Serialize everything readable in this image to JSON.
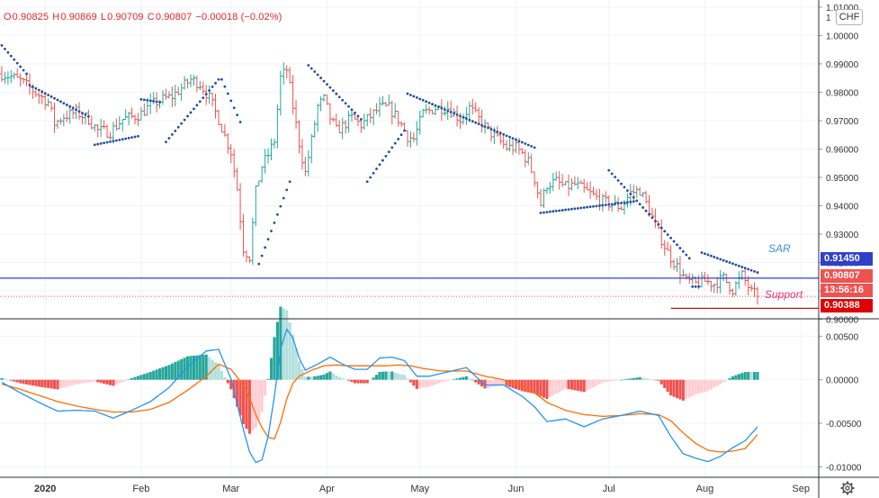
{
  "header": {
    "open_label": "O",
    "open": "0.90825",
    "high_label": "H",
    "high": "0.90869",
    "low_label": "L",
    "low": "0.90709",
    "close_label": "C",
    "close": "0.90807",
    "change": "−0.00018 (−0.02%)",
    "currency_button": "CHF"
  },
  "price_tags": {
    "sar": "0.91450",
    "last": "0.90807",
    "countdown": "13:56:16",
    "support": "0.90388"
  },
  "annotations": {
    "sar_label": "SAR",
    "support_label": "Support"
  },
  "colors": {
    "up": "#26a69a",
    "down": "#ef5350",
    "sar_dots": "#1f4e9c",
    "sar_line": "#3140c8",
    "support_line": "#b71c1c",
    "macd_line": "#2196f3",
    "signal_line": "#ff6d00",
    "hist_up_strong": "#26a69a",
    "hist_up_weak": "#b2dfdb",
    "hist_down_strong": "#ef5350",
    "hist_down_weak": "#ffcdd2"
  },
  "icons": {
    "settings": "gear-icon"
  },
  "chart_data": [
    {
      "type": "ohlc",
      "panel": "price",
      "y_range": [
        0.9005,
        1.0125
      ],
      "y_ticks": [
        "0.90000",
        "0.91000",
        "0.92000",
        "0.93000",
        "0.94000",
        "0.95000",
        "0.96000",
        "0.97000",
        "0.98000",
        "0.99000",
        "1.00000",
        "1.01000"
      ],
      "x_range_days": [
        0,
        244
      ],
      "x_ticks": [
        {
          "label": "2020",
          "day": 14
        },
        {
          "label": "Feb",
          "day": 45
        },
        {
          "label": "Mar",
          "day": 74
        },
        {
          "label": "Apr",
          "day": 105
        },
        {
          "label": "May",
          "day": 135
        },
        {
          "label": "Jun",
          "day": 166
        },
        {
          "label": "Jul",
          "day": 196
        },
        {
          "label": "Aug",
          "day": 227
        },
        {
          "label": "Sep",
          "day": 258
        }
      ],
      "close_anchors": [
        [
          0,
          0.9865
        ],
        [
          3,
          0.9855
        ],
        [
          6,
          0.984
        ],
        [
          9,
          0.9815
        ],
        [
          12,
          0.979
        ],
        [
          15,
          0.9765
        ],
        [
          17,
          0.969
        ],
        [
          20,
          0.9715
        ],
        [
          24,
          0.973
        ],
        [
          28,
          0.9705
        ],
        [
          31,
          0.9665
        ],
        [
          35,
          0.966
        ],
        [
          39,
          0.9705
        ],
        [
          43,
          0.9715
        ],
        [
          45,
          0.9725
        ],
        [
          48,
          0.9755
        ],
        [
          52,
          0.9775
        ],
        [
          55,
          0.9785
        ],
        [
          58,
          0.9815
        ],
        [
          61,
          0.9845
        ],
        [
          64,
          0.983
        ],
        [
          67,
          0.978
        ],
        [
          70,
          0.9705
        ],
        [
          72,
          0.9645
        ],
        [
          74,
          0.959
        ],
        [
          76,
          0.946
        ],
        [
          78,
          0.925
        ],
        [
          80,
          0.922
        ],
        [
          82,
          0.945
        ],
        [
          84,
          0.954
        ],
        [
          86,
          0.958
        ],
        [
          88,
          0.963
        ],
        [
          90,
          0.985
        ],
        [
          92,
          0.988
        ],
        [
          94,
          0.975
        ],
        [
          96,
          0.962
        ],
        [
          98,
          0.9515
        ],
        [
          100,
          0.963
        ],
        [
          102,
          0.975
        ],
        [
          104,
          0.9775
        ],
        [
          106,
          0.971
        ],
        [
          108,
          0.9665
        ],
        [
          110,
          0.968
        ],
        [
          113,
          0.971
        ],
        [
          116,
          0.9685
        ],
        [
          119,
          0.9715
        ],
        [
          122,
          0.9745
        ],
        [
          125,
          0.9745
        ],
        [
          128,
          0.9705
        ],
        [
          131,
          0.9645
        ],
        [
          133,
          0.9635
        ],
        [
          136,
          0.9725
        ],
        [
          140,
          0.9745
        ],
        [
          144,
          0.9745
        ],
        [
          148,
          0.9705
        ],
        [
          151,
          0.9745
        ],
        [
          154,
          0.9705
        ],
        [
          157,
          0.9665
        ],
        [
          160,
          0.9635
        ],
        [
          163,
          0.9605
        ],
        [
          166,
          0.9605
        ],
        [
          168,
          0.9585
        ],
        [
          170,
          0.9555
        ],
        [
          172,
          0.9495
        ],
        [
          174,
          0.9405
        ],
        [
          176,
          0.9475
        ],
        [
          179,
          0.9485
        ],
        [
          182,
          0.9465
        ],
        [
          185,
          0.9475
        ],
        [
          188,
          0.9455
        ],
        [
          191,
          0.9435
        ],
        [
          194,
          0.9415
        ],
        [
          197,
          0.9405
        ],
        [
          200,
          0.9395
        ],
        [
          203,
          0.9445
        ],
        [
          206,
          0.9455
        ],
        [
          209,
          0.9385
        ],
        [
          212,
          0.9305
        ],
        [
          215,
          0.9235
        ],
        [
          218,
          0.9185
        ],
        [
          221,
          0.9135
        ],
        [
          224,
          0.9125
        ],
        [
          227,
          0.9135
        ],
        [
          230,
          0.9125
        ],
        [
          233,
          0.9145
        ],
        [
          236,
          0.9105
        ],
        [
          239,
          0.9155
        ],
        [
          242,
          0.9095
        ],
        [
          244,
          0.90807
        ]
      ],
      "sar_segments": [
        {
          "from_day": 0,
          "to_day": 8,
          "start": 0.9965,
          "end": 0.9865,
          "side": "above"
        },
        {
          "from_day": 9,
          "to_day": 28,
          "start": 0.9825,
          "end": 0.9715,
          "side": "above"
        },
        {
          "from_day": 30,
          "to_day": 44,
          "start": 0.9615,
          "end": 0.9645,
          "side": "below"
        },
        {
          "from_day": 45,
          "to_day": 51,
          "start": 0.9775,
          "end": 0.9765,
          "side": "above"
        },
        {
          "from_day": 53,
          "to_day": 70,
          "start": 0.9625,
          "end": 0.9845,
          "side": "below"
        },
        {
          "from_day": 71,
          "to_day": 77,
          "start": 0.9845,
          "end": 0.9695,
          "side": "above"
        },
        {
          "from_day": 83,
          "to_day": 93,
          "start": 0.9195,
          "end": 0.9485,
          "side": "below"
        },
        {
          "from_day": 99,
          "to_day": 116,
          "start": 0.9895,
          "end": 0.9705,
          "side": "above"
        },
        {
          "from_day": 118,
          "to_day": 130,
          "start": 0.9485,
          "end": 0.9665,
          "side": "below"
        },
        {
          "from_day": 131,
          "to_day": 172,
          "start": 0.9795,
          "end": 0.9605,
          "side": "above"
        },
        {
          "from_day": 174,
          "to_day": 204,
          "start": 0.9375,
          "end": 0.9415,
          "side": "below"
        },
        {
          "from_day": 196,
          "to_day": 222,
          "start": 0.9525,
          "end": 0.9215,
          "side": "above"
        },
        {
          "from_day": 223,
          "to_day": 225,
          "start": 0.9115,
          "end": 0.9115,
          "side": "below"
        },
        {
          "from_day": 226,
          "to_day": 244,
          "start": 0.9235,
          "end": 0.9165,
          "side": "above"
        }
      ],
      "horizontal_lines": [
        {
          "name": "SAR",
          "value": 0.9145,
          "style": "solid",
          "extent": "full"
        },
        {
          "name": "Last",
          "value": 0.90807,
          "style": "dotted",
          "extent": "full"
        },
        {
          "name": "Support",
          "value": 0.90388,
          "style": "solid",
          "from_day": 216
        }
      ]
    },
    {
      "type": "macd",
      "panel": "indicator",
      "y_range": [
        -0.0112,
        0.0069
      ],
      "y_ticks": [
        "0.00500",
        "0.00000",
        "-0.00500",
        "-0.01000"
      ],
      "macd_anchors": [
        [
          0,
          -0.0003
        ],
        [
          6,
          -0.0015
        ],
        [
          12,
          -0.0026
        ],
        [
          18,
          -0.0036
        ],
        [
          24,
          -0.0035
        ],
        [
          30,
          -0.0036
        ],
        [
          36,
          -0.0044
        ],
        [
          42,
          -0.0035
        ],
        [
          48,
          -0.0025
        ],
        [
          54,
          -0.0009
        ],
        [
          60,
          0.0015
        ],
        [
          66,
          0.0033
        ],
        [
          70,
          0.0035
        ],
        [
          74,
          0.0001
        ],
        [
          78,
          -0.0057
        ],
        [
          80,
          -0.0083
        ],
        [
          82,
          -0.0095
        ],
        [
          84,
          -0.0092
        ],
        [
          86,
          -0.0065
        ],
        [
          88,
          -0.0019
        ],
        [
          90,
          0.0035
        ],
        [
          92,
          0.0058
        ],
        [
          94,
          0.0048
        ],
        [
          96,
          0.0025
        ],
        [
          98,
          0.0011
        ],
        [
          102,
          0.0018
        ],
        [
          106,
          0.0026
        ],
        [
          110,
          0.0018
        ],
        [
          114,
          0.0012
        ],
        [
          118,
          0.0012
        ],
        [
          122,
          0.0025
        ],
        [
          126,
          0.0026
        ],
        [
          130,
          0.0022
        ],
        [
          134,
          0.0004
        ],
        [
          138,
          0.0004
        ],
        [
          144,
          0.0009
        ],
        [
          150,
          0.0014
        ],
        [
          156,
          -0.0006
        ],
        [
          162,
          -0.0006
        ],
        [
          168,
          -0.0019
        ],
        [
          172,
          -0.0031
        ],
        [
          176,
          -0.0048
        ],
        [
          182,
          -0.0045
        ],
        [
          188,
          -0.0054
        ],
        [
          194,
          -0.0045
        ],
        [
          200,
          -0.0041
        ],
        [
          206,
          -0.0036
        ],
        [
          212,
          -0.0041
        ],
        [
          216,
          -0.0065
        ],
        [
          220,
          -0.0085
        ],
        [
          224,
          -0.009
        ],
        [
          228,
          -0.0094
        ],
        [
          232,
          -0.0088
        ],
        [
          236,
          -0.0078
        ],
        [
          240,
          -0.007
        ],
        [
          244,
          -0.0054
        ]
      ],
      "signal_anchors": [
        [
          0,
          -0.0005
        ],
        [
          6,
          -0.0011
        ],
        [
          12,
          -0.0018
        ],
        [
          18,
          -0.0025
        ],
        [
          24,
          -0.003
        ],
        [
          30,
          -0.0034
        ],
        [
          36,
          -0.0037
        ],
        [
          42,
          -0.0037
        ],
        [
          48,
          -0.0034
        ],
        [
          54,
          -0.0026
        ],
        [
          60,
          -0.0012
        ],
        [
          66,
          0.0004
        ],
        [
          70,
          0.0018
        ],
        [
          74,
          0.0012
        ],
        [
          78,
          -0.0006
        ],
        [
          80,
          -0.0021
        ],
        [
          82,
          -0.004
        ],
        [
          84,
          -0.0055
        ],
        [
          86,
          -0.0066
        ],
        [
          88,
          -0.0068
        ],
        [
          90,
          -0.0049
        ],
        [
          92,
          -0.0022
        ],
        [
          94,
          -0.0004
        ],
        [
          96,
          0.0004
        ],
        [
          100,
          0.0011
        ],
        [
          104,
          0.0016
        ],
        [
          108,
          0.0017
        ],
        [
          112,
          0.0016
        ],
        [
          118,
          0.0016
        ],
        [
          124,
          0.0016
        ],
        [
          128,
          0.0017
        ],
        [
          132,
          0.0016
        ],
        [
          136,
          0.0013
        ],
        [
          142,
          0.001
        ],
        [
          150,
          0.001
        ],
        [
          156,
          0.0004
        ],
        [
          162,
          0.0
        ],
        [
          168,
          -0.0006
        ],
        [
          172,
          -0.0015
        ],
        [
          176,
          -0.0026
        ],
        [
          182,
          -0.0035
        ],
        [
          188,
          -0.004
        ],
        [
          194,
          -0.0042
        ],
        [
          200,
          -0.0041
        ],
        [
          206,
          -0.0039
        ],
        [
          212,
          -0.004
        ],
        [
          216,
          -0.0047
        ],
        [
          220,
          -0.0061
        ],
        [
          224,
          -0.0073
        ],
        [
          228,
          -0.0081
        ],
        [
          232,
          -0.0083
        ],
        [
          236,
          -0.0082
        ],
        [
          240,
          -0.0079
        ],
        [
          244,
          -0.0063
        ]
      ]
    }
  ]
}
